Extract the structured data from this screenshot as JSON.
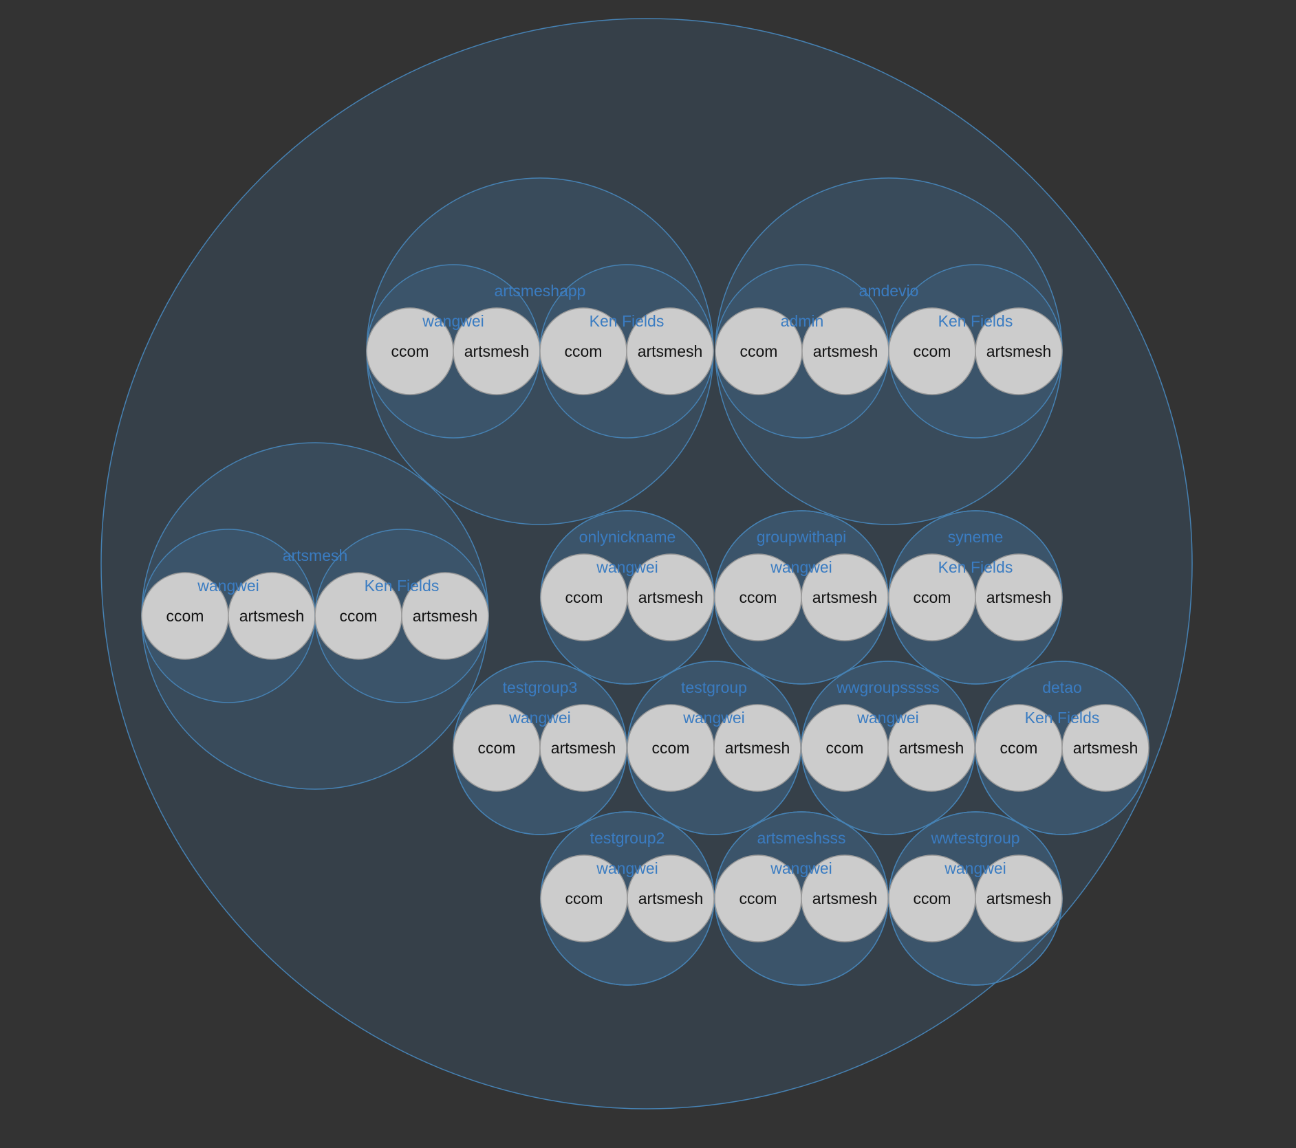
{
  "colors": {
    "background": "#333333",
    "circle_stroke": "#4682b4",
    "circle_fill": "rgba(70,130,180,0.18)",
    "label_blue": "#3a7cc2",
    "leaf_fill": "#cccccc",
    "leaf_stroke": "#999999",
    "leaf_text": "#111111"
  },
  "groups": [
    {
      "name": "artsmeshapp",
      "users": [
        {
          "name": "wangwei",
          "leaves": [
            "ccom",
            "artsmesh"
          ]
        },
        {
          "name": "Ken Fields",
          "leaves": [
            "ccom",
            "artsmesh"
          ]
        }
      ]
    },
    {
      "name": "amdevio",
      "users": [
        {
          "name": "admin",
          "leaves": [
            "ccom",
            "artsmesh"
          ]
        },
        {
          "name": "Ken Fields",
          "leaves": [
            "ccom",
            "artsmesh"
          ]
        }
      ]
    },
    {
      "name": "artsmesh",
      "users": [
        {
          "name": "wangwei",
          "leaves": [
            "ccom",
            "artsmesh"
          ]
        },
        {
          "name": "Ken Fields",
          "leaves": [
            "ccom",
            "artsmesh"
          ]
        }
      ]
    },
    {
      "name": "onlynickname",
      "users": [
        {
          "name": "wangwei",
          "leaves": [
            "ccom",
            "artsmesh"
          ]
        }
      ]
    },
    {
      "name": "groupwithapi",
      "users": [
        {
          "name": "wangwei",
          "leaves": [
            "ccom",
            "artsmesh"
          ]
        }
      ]
    },
    {
      "name": "syneme",
      "users": [
        {
          "name": "Ken Fields",
          "leaves": [
            "ccom",
            "artsmesh"
          ]
        }
      ]
    },
    {
      "name": "testgroup3",
      "users": [
        {
          "name": "wangwei",
          "leaves": [
            "ccom",
            "artsmesh"
          ]
        }
      ]
    },
    {
      "name": "testgroup",
      "users": [
        {
          "name": "wangwei",
          "leaves": [
            "ccom",
            "artsmesh"
          ]
        }
      ]
    },
    {
      "name": "wwgroupsssss",
      "users": [
        {
          "name": "wangwei",
          "leaves": [
            "ccom",
            "artsmesh"
          ]
        }
      ]
    },
    {
      "name": "detao",
      "users": [
        {
          "name": "Ken Fields",
          "leaves": [
            "ccom",
            "artsmesh"
          ]
        }
      ]
    },
    {
      "name": "testgroup2",
      "users": [
        {
          "name": "wangwei",
          "leaves": [
            "ccom",
            "artsmesh"
          ]
        }
      ]
    },
    {
      "name": "artsmeshsss",
      "users": [
        {
          "name": "wangwei",
          "leaves": [
            "ccom",
            "artsmesh"
          ]
        }
      ]
    },
    {
      "name": "wwtestgroup",
      "users": [
        {
          "name": "wangwei",
          "leaves": [
            "ccom",
            "artsmesh"
          ]
        }
      ]
    }
  ]
}
